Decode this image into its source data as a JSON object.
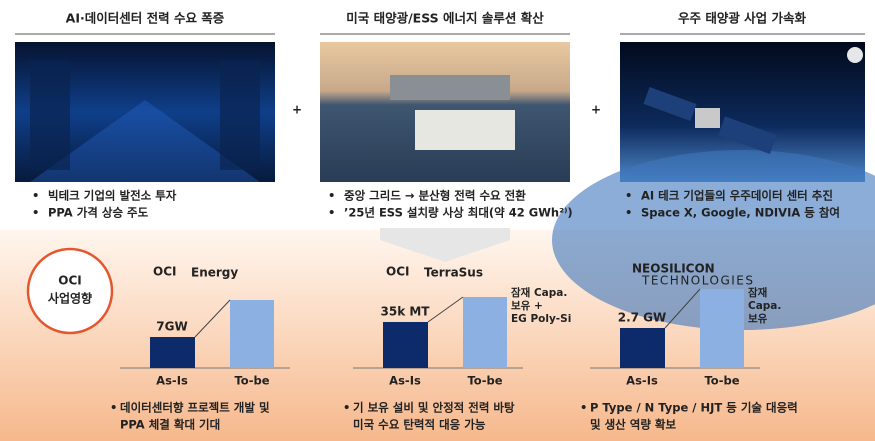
{
  "columns": [
    {
      "title": "AI·데이터센터 전력 수요 폭증",
      "bullets": [
        "빅테크 기업의 발전소 투자",
        "PPA 가격 상승 주도"
      ]
    },
    {
      "title": "미국 태양광/ESS 에너지 솔루션 확산",
      "bullets": [
        "중앙 그리드 → 분산형 전력 수요 전환",
        "’25년 ESS 설치량 사상 최대(약 42 GWh²⁾)"
      ]
    },
    {
      "title": "우주 태양광 사업 가속화",
      "bullets": [
        "AI 테크 기업들의 우주데이터 센터 추진",
        "Space X, Google, NDIVIA 등 참여"
      ]
    }
  ],
  "impact": {
    "line1": "OCI",
    "line2": "사업영향"
  },
  "panels": [
    {
      "logo_mark": "OCI",
      "logo_name": "Energy",
      "as_is_label": "7GW",
      "categories": [
        "As-Is",
        "To-be"
      ],
      "text": [
        "데이터센터향 프로젝트 개발 및",
        "PPA 체결 확대 기대"
      ]
    },
    {
      "logo_mark": "OCI",
      "logo_name": "TerraSus",
      "as_is_label": "35k MT",
      "categories": [
        "As-Is",
        "To-be"
      ],
      "note": [
        "잠재 Capa.",
        "보유 +",
        "EG Poly-Si"
      ],
      "text": [
        "기 보유 설비 및 안정적 전력 바탕",
        "미국 수요 탄력적 대응 가능"
      ]
    },
    {
      "logo_mark": "NEOSILICON",
      "logo_name": "TECHNOLOGIES",
      "as_is_label": "2.7 GW",
      "categories": [
        "As-Is",
        "To-be"
      ],
      "note": [
        "잠재",
        "Capa.",
        "보유"
      ],
      "text": [
        "P Type / N Type / HJT 등 기술 대응력",
        "및 생산 역량 확보"
      ]
    }
  ]
}
